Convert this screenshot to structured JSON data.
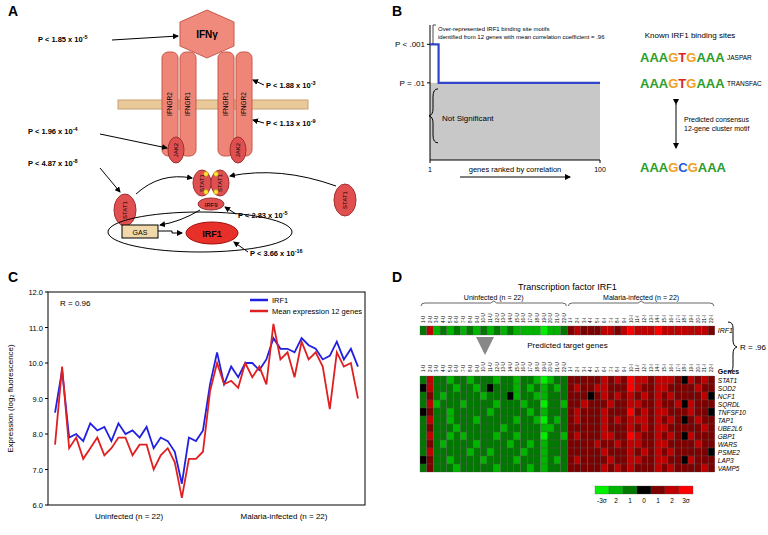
{
  "panel_labels": [
    "A",
    "B",
    "C",
    "D"
  ],
  "diagram": {
    "labels": {
      "ligand": "IFNγ",
      "receptors": [
        "IFNGR2",
        "IFNGR1",
        "IFNGR1",
        "IFNGR2"
      ],
      "kinases": [
        "JAK2",
        "JAK2"
      ],
      "stat": [
        "STAT1",
        "STAT1",
        "STAT1",
        "STAT1"
      ],
      "irf9": "IRF9",
      "element": "GAS",
      "gene": "IRF1"
    },
    "p_values": [
      {
        "text": "P < 1.85 x 10",
        "exponent": "-5"
      },
      {
        "text": "P < 1.88 x 10",
        "exponent": "-3"
      },
      {
        "text": "P < 1.13 x 10",
        "exponent": "-9"
      },
      {
        "text": "P < 1.96 x 10",
        "exponent": "-4"
      },
      {
        "text": "P < 4.87 x 10",
        "exponent": "-8"
      },
      {
        "text": "P < 2.83 x 10",
        "exponent": "-5"
      },
      {
        "text": "P < 3.66 x 10",
        "exponent": "-16"
      }
    ]
  },
  "chart_data": [
    {
      "type": "line",
      "x": [
        1,
        6,
        6,
        100
      ],
      "values": [
        3,
        3,
        2,
        2
      ],
      "color": "#3344cc",
      "xlim": [
        1,
        100
      ],
      "xticks": [
        1,
        100
      ],
      "ylim": [
        0,
        3.5
      ],
      "yticks": [
        {
          "value": 3,
          "label": "P < .001"
        },
        {
          "value": 2,
          "label": "P = .01"
        }
      ],
      "x_label": "genes ranked by correlation",
      "annotation": [
        "Over-represented IRF1 binding site motifs",
        "identified from 12 genes with mean correlation coefficient = .96"
      ],
      "shaded": {
        "below": 2,
        "label": "Not Significant"
      },
      "motifs": {
        "title": "Known IRF1 binding sites",
        "known": [
          {
            "name": "JASPAR",
            "letters": "AAAGTGAAA"
          },
          {
            "name": "TRANSFAC",
            "letters": "AAAGTGAAA"
          }
        ],
        "predicted": {
          "label": [
            "Predicted consensus",
            "12-gene cluster motif"
          ],
          "letters": "AAAGCGAAA"
        }
      }
    },
    {
      "type": "line",
      "annotation": "R = 0.96",
      "x": [
        1,
        2,
        3,
        4,
        5,
        6,
        7,
        8,
        9,
        10,
        11,
        12,
        13,
        14,
        15,
        16,
        17,
        18,
        19,
        20,
        21,
        22,
        23,
        24,
        25,
        26,
        27,
        28,
        29,
        30,
        31,
        32,
        33,
        34,
        35,
        36,
        37,
        38,
        39,
        40,
        41,
        42,
        43,
        44
      ],
      "series": [
        {
          "name": "IRF1",
          "color": "#2020e0",
          "values": [
            8.6,
            9.8,
            7.9,
            8.0,
            7.8,
            8.3,
            8.1,
            8.2,
            7.8,
            8.3,
            8.0,
            8.1,
            7.9,
            8.2,
            7.6,
            7.9,
            7.8,
            7.5,
            6.6,
            7.9,
            7.8,
            8.1,
            9.4,
            10.3,
            9.4,
            9.9,
            9.6,
            10.0,
            10.0,
            9.8,
            10.1,
            10.7,
            10.4,
            10.4,
            10.3,
            10.7,
            10.5,
            10.4,
            10.1,
            10.2,
            10.6,
            10.1,
            10.4,
            9.9
          ]
        },
        {
          "name": "Mean expression 12 genes",
          "color": "#e02020",
          "values": [
            7.7,
            9.9,
            7.6,
            7.9,
            7.3,
            7.6,
            7.9,
            7.4,
            7.6,
            7.9,
            7.9,
            7.4,
            7.7,
            7.7,
            7.0,
            7.4,
            7.6,
            7.2,
            6.2,
            7.3,
            7.3,
            7.5,
            9.2,
            10.0,
            9.4,
            9.5,
            9.3,
            10.0,
            9.6,
            9.9,
            9.4,
            11.1,
            10.1,
            10.3,
            9.6,
            10.6,
            10.1,
            10.3,
            9.9,
            8.7,
            10.3,
            9.9,
            10.0,
            9.0
          ]
        }
      ],
      "xlim": [
        0,
        45
      ],
      "ylim": [
        6,
        12
      ],
      "yticks": [
        {
          "value": 6,
          "label": "6.0"
        },
        {
          "value": 7,
          "label": "7.0"
        },
        {
          "value": 8,
          "label": "8.0"
        },
        {
          "value": 9,
          "label": "9.0"
        },
        {
          "value": 10,
          "label": "10.0"
        },
        {
          "value": 11,
          "label": "11.0"
        },
        {
          "value": 12,
          "label": "12.0"
        }
      ],
      "y_label": "Expression (log₂ fluorescence)",
      "groups": [
        {
          "label": "Uninfected (n = 22)",
          "x_range": [
            1,
            22
          ]
        },
        {
          "label": "Malaria-infected (n = 22)",
          "x_range": [
            23,
            44
          ]
        }
      ],
      "legend": "upper right",
      "tick_labels": "y"
    },
    {
      "type": "heatmap",
      "title": "Transcription factor IRF1",
      "subtitle": "Predicted target genes",
      "annotation": "R = .96",
      "columns": [
        "1-U",
        "2-U",
        "3-U",
        "4-U",
        "5-U",
        "6-U",
        "7-U",
        "8-U",
        "9-U",
        "10-U",
        "11-U",
        "12-U",
        "13-U",
        "14-U",
        "15-U",
        "16-U",
        "17-U",
        "18-U",
        "19-U",
        "20-U",
        "21-U",
        "22-U",
        "1-I",
        "2-I",
        "3-I",
        "4-I",
        "5-I",
        "6-I",
        "7-I",
        "8-I",
        "9-I",
        "10-I",
        "11-I",
        "12-I",
        "13-I",
        "14-I",
        "15-I",
        "16-I",
        "17-I",
        "18-I",
        "19-I",
        "20-I",
        "21-I",
        "22-I"
      ],
      "column_groups": [
        {
          "label": "Uninfected (n = 22)",
          "x_range": [
            1,
            22
          ]
        },
        {
          "label": "Malaria-infected (n = 22)",
          "x_range": [
            23,
            44
          ]
        }
      ],
      "tf": {
        "name": "IRF1",
        "values": [
          -1,
          2,
          -2,
          -1,
          -2,
          -1,
          -2,
          -1,
          -2,
          -1,
          -2,
          -1,
          -2,
          -1,
          -2,
          -2,
          -2,
          -2,
          -3,
          -2,
          -2,
          -1,
          1,
          2,
          1,
          1,
          1,
          2,
          2,
          1,
          2,
          3,
          2,
          2,
          2,
          3,
          2,
          2,
          2,
          2,
          2,
          2,
          2,
          1
        ]
      },
      "rows_title": "Genes",
      "rows": [
        "STAT1",
        "SOD2",
        "NCF1",
        "SQRDL",
        "TNFSF10",
        "TAP1",
        "UBE2L6",
        "GBP1",
        "WARS",
        "PSME2",
        "LAP3",
        "VAMP5"
      ],
      "cells": [
        [
          -1,
          2,
          -1,
          -1,
          -2,
          -1,
          -1,
          -2,
          -1,
          -1,
          -1,
          -2,
          -1,
          -1,
          -2,
          -1,
          -1,
          -2,
          -3,
          -2,
          -1,
          -1,
          1,
          1,
          1,
          1,
          1,
          2,
          1,
          2,
          1,
          3,
          2,
          2,
          1,
          2,
          2,
          2,
          1,
          0,
          2,
          1,
          2,
          1
        ],
        [
          0,
          2,
          -1,
          -1,
          -1,
          -2,
          -1,
          -1,
          -2,
          -1,
          0,
          -1,
          -1,
          -1,
          -2,
          -1,
          -2,
          -1,
          -2,
          -1,
          -2,
          -1,
          1,
          2,
          1,
          1,
          2,
          2,
          1,
          1,
          1,
          3,
          2,
          1,
          1,
          2,
          2,
          1,
          1,
          1,
          1,
          2,
          1,
          1
        ],
        [
          -1,
          1,
          -1,
          -2,
          -1,
          -1,
          -1,
          -1,
          -1,
          -2,
          -1,
          -1,
          -1,
          0,
          -2,
          -1,
          -1,
          -2,
          -2,
          -1,
          -1,
          -1,
          1,
          1,
          1,
          0,
          1,
          2,
          1,
          2,
          1,
          2,
          1,
          2,
          1,
          2,
          1,
          2,
          1,
          1,
          1,
          1,
          2,
          0
        ],
        [
          -1,
          2,
          -2,
          -1,
          -1,
          -1,
          -2,
          -1,
          -1,
          -1,
          -1,
          -2,
          -1,
          -1,
          -1,
          -2,
          -1,
          -1,
          -3,
          -1,
          -1,
          -2,
          1,
          1,
          2,
          1,
          1,
          1,
          2,
          1,
          1,
          2,
          2,
          1,
          1,
          2,
          1,
          1,
          2,
          0,
          2,
          1,
          1,
          1
        ],
        [
          0,
          1,
          -1,
          -1,
          -2,
          -1,
          -1,
          -1,
          -1,
          -1,
          -2,
          -1,
          -1,
          -1,
          -1,
          -1,
          -2,
          -1,
          -2,
          -1,
          -1,
          -1,
          1,
          2,
          1,
          1,
          1,
          2,
          1,
          1,
          1,
          3,
          1,
          2,
          1,
          2,
          2,
          1,
          1,
          1,
          2,
          1,
          1,
          0
        ],
        [
          -1,
          2,
          -1,
          -1,
          -2,
          -1,
          -1,
          -1,
          -2,
          -1,
          -1,
          -1,
          -1,
          -1,
          -2,
          -1,
          -1,
          -2,
          -3,
          -1,
          -2,
          -1,
          1,
          2,
          1,
          1,
          1,
          2,
          1,
          2,
          1,
          2,
          2,
          2,
          1,
          2,
          1,
          2,
          1,
          0,
          1,
          2,
          1,
          1
        ],
        [
          -1,
          1,
          -1,
          -1,
          -1,
          -2,
          -1,
          -1,
          -1,
          -1,
          -1,
          -1,
          -2,
          -1,
          -1,
          -1,
          -1,
          -1,
          -2,
          -2,
          -1,
          -1,
          1,
          1,
          1,
          1,
          1,
          2,
          1,
          1,
          1,
          2,
          1,
          2,
          1,
          2,
          2,
          1,
          1,
          1,
          1,
          1,
          2,
          1
        ],
        [
          -1,
          2,
          -1,
          -1,
          -2,
          -1,
          -2,
          -1,
          -1,
          -1,
          -1,
          -2,
          -1,
          -1,
          -2,
          -1,
          -1,
          -1,
          -3,
          -1,
          -1,
          -2,
          1,
          2,
          1,
          1,
          1,
          2,
          2,
          1,
          1,
          3,
          2,
          1,
          1,
          2,
          1,
          2,
          1,
          0,
          2,
          1,
          1,
          1
        ],
        [
          -1,
          1,
          -1,
          -2,
          -1,
          -1,
          -1,
          -1,
          -2,
          -1,
          -1,
          -1,
          -1,
          -2,
          -1,
          -1,
          -2,
          -1,
          -2,
          -1,
          -1,
          -1,
          1,
          1,
          1,
          1,
          2,
          1,
          1,
          2,
          1,
          2,
          2,
          1,
          1,
          2,
          2,
          1,
          1,
          1,
          1,
          2,
          1,
          1
        ],
        [
          -1,
          2,
          -1,
          -1,
          -1,
          -1,
          -1,
          -2,
          -1,
          -1,
          -2,
          -1,
          -1,
          -1,
          -1,
          -2,
          -1,
          -1,
          -2,
          -1,
          -1,
          -1,
          1,
          1,
          1,
          1,
          1,
          2,
          1,
          1,
          1,
          2,
          1,
          2,
          1,
          2,
          1,
          2,
          1,
          1,
          1,
          1,
          1,
          0
        ],
        [
          0,
          1,
          -1,
          -1,
          -2,
          -1,
          -1,
          -1,
          -1,
          -2,
          -1,
          -1,
          -1,
          -1,
          -2,
          -1,
          -1,
          -1,
          -2,
          -1,
          -2,
          -1,
          1,
          2,
          1,
          1,
          1,
          1,
          2,
          1,
          1,
          2,
          2,
          1,
          1,
          2,
          2,
          1,
          1,
          0,
          2,
          1,
          1,
          1
        ],
        [
          -1,
          1,
          -1,
          -1,
          -1,
          -2,
          -1,
          -1,
          -1,
          -1,
          -1,
          -2,
          -1,
          -1,
          -1,
          -1,
          -2,
          -1,
          -2,
          -1,
          -1,
          -1,
          1,
          1,
          1,
          1,
          1,
          2,
          1,
          2,
          1,
          2,
          1,
          1,
          1,
          2,
          1,
          2,
          1,
          1,
          1,
          1,
          2,
          1
        ]
      ],
      "color_range": [
        -3,
        3
      ],
      "color_ticks": [
        {
          "value": -3,
          "label": "-3σ"
        },
        {
          "value": -2,
          "label": "2"
        },
        {
          "value": -1,
          "label": "1"
        },
        0,
        1,
        2,
        {
          "value": 3,
          "label": "3σ"
        }
      ]
    }
  ]
}
